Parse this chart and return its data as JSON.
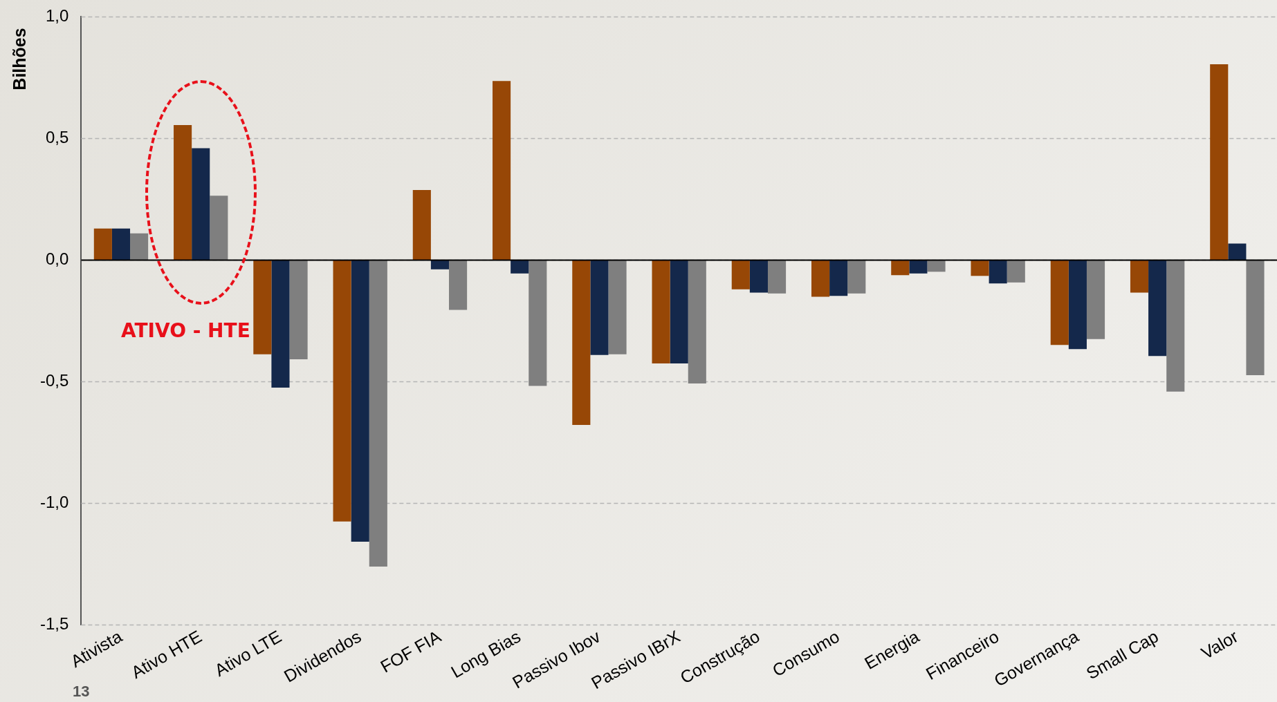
{
  "chart_data": {
    "type": "bar",
    "ylabel": "Bilhões",
    "categories": [
      "Ativista",
      "Ativo HTE",
      "Ativo LTE",
      "Dividendos",
      "FOF FIA",
      "Long Bias",
      "Passivo Ibov",
      "Passivo IBrX",
      "Construção",
      "Consumo",
      "Energia",
      "Financeiro",
      "Governança",
      "Small Cap",
      "Valor"
    ],
    "series": [
      {
        "color": "#974706",
        "values": [
          0.13,
          0.555,
          -0.387,
          -1.075,
          0.288,
          0.736,
          -0.678,
          -0.425,
          -0.12,
          -0.151,
          -0.062,
          -0.065,
          -0.349,
          -0.134,
          0.805
        ]
      },
      {
        "color": "#14284b",
        "values": [
          0.13,
          0.46,
          -0.524,
          -1.158,
          -0.038,
          -0.055,
          -0.39,
          -0.425,
          -0.134,
          -0.147,
          -0.055,
          -0.096,
          -0.366,
          -0.394,
          0.068
        ]
      },
      {
        "color": "#7f7f7f",
        "values": [
          0.11,
          0.265,
          -0.408,
          -1.26,
          -0.205,
          -0.517,
          -0.387,
          -0.507,
          -0.137,
          -0.137,
          -0.048,
          -0.092,
          -0.325,
          -0.541,
          -0.473
        ]
      }
    ],
    "ylim": [
      -1.5,
      1.0
    ],
    "yticks": [
      {
        "value": -1.5,
        "label": "-1,5"
      },
      {
        "value": -1.0,
        "label": "-1,0"
      },
      {
        "value": -0.5,
        "label": "-0,5"
      },
      {
        "value": 0,
        "label": "0,0"
      },
      {
        "value": 0.5,
        "label": "0,5"
      },
      {
        "value": 1.0,
        "label": "1,0"
      }
    ],
    "grid": "y",
    "legend": false,
    "annotations": [
      "ATIVO - HTE",
      "13"
    ]
  }
}
